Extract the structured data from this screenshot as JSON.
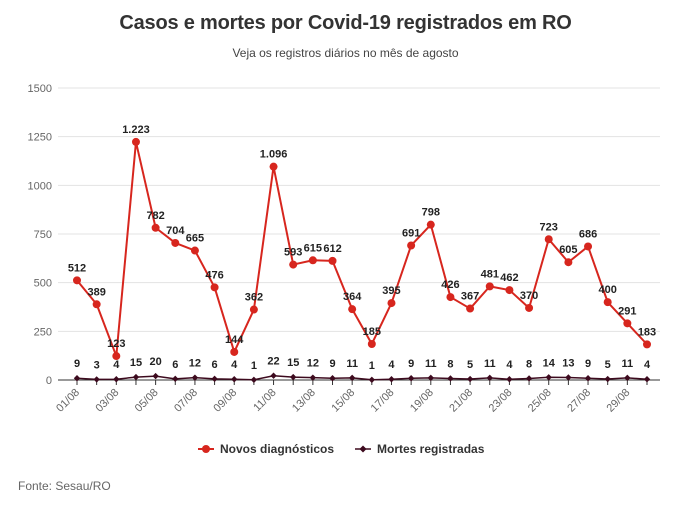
{
  "title": "Casos e mortes por Covid-19 registrados em RO",
  "subtitle": "Veja os registros diários no mês de agosto",
  "source": "Fonte: Sesau/RO",
  "colors": {
    "cases": "#d7261e",
    "deaths": "#3d0a1e",
    "grid": "#e3e3e3",
    "axis": "#333333"
  },
  "chart_data": {
    "type": "line",
    "x": [
      "01/08",
      "02/08",
      "03/08",
      "04/08",
      "05/08",
      "06/08",
      "07/08",
      "08/08",
      "09/08",
      "10/08",
      "11/08",
      "12/08",
      "13/08",
      "14/08",
      "15/08",
      "16/08",
      "17/08",
      "18/08",
      "19/08",
      "20/08",
      "21/08",
      "22/08",
      "23/08",
      "24/08",
      "25/08",
      "26/08",
      "27/08",
      "28/08",
      "29/08",
      "30/08"
    ],
    "x_tick_labels": [
      "01/08",
      "03/08",
      "05/08",
      "07/08",
      "09/08",
      "11/08",
      "13/08",
      "15/08",
      "17/08",
      "19/08",
      "21/08",
      "23/08",
      "25/08",
      "27/08",
      "29/08"
    ],
    "y_ticks": [
      0,
      250,
      500,
      750,
      1000,
      1250,
      1500
    ],
    "y_tick_labels": [
      "0",
      "250",
      "500",
      "750",
      "1000",
      "1250",
      "1500"
    ],
    "ylim": [
      0,
      1500
    ],
    "grid": true,
    "legend_position": "bottom",
    "series": [
      {
        "name": "Novos diagnósticos",
        "values": [
          512,
          389,
          123,
          1223,
          782,
          704,
          665,
          476,
          144,
          362,
          1096,
          593,
          615,
          612,
          364,
          185,
          395,
          691,
          798,
          426,
          367,
          481,
          462,
          370,
          723,
          605,
          686,
          400,
          291,
          183
        ],
        "labels": [
          "512",
          "389",
          "123",
          "1.223",
          "782",
          "704",
          "665",
          "476",
          "144",
          "362",
          "1.096",
          "593",
          "615",
          "612",
          "364",
          "185",
          "395",
          "691",
          "798",
          "426",
          "367",
          "481",
          "462",
          "370",
          "723",
          "605",
          "686",
          "400",
          "291",
          "183"
        ]
      },
      {
        "name": "Mortes registradas",
        "values": [
          9,
          3,
          4,
          15,
          20,
          6,
          12,
          6,
          4,
          1,
          22,
          15,
          12,
          9,
          11,
          1,
          4,
          9,
          11,
          8,
          5,
          11,
          4,
          8,
          14,
          13,
          9,
          5,
          11,
          4
        ],
        "labels": [
          "9",
          "3",
          "4",
          "15",
          "20",
          "6",
          "12",
          "6",
          "4",
          "1",
          "22",
          "15",
          "12",
          "9",
          "11",
          "1",
          "4",
          "9",
          "11",
          "8",
          "5",
          "11",
          "4",
          "8",
          "14",
          "13",
          "9",
          "5",
          "11",
          "4"
        ]
      }
    ]
  }
}
